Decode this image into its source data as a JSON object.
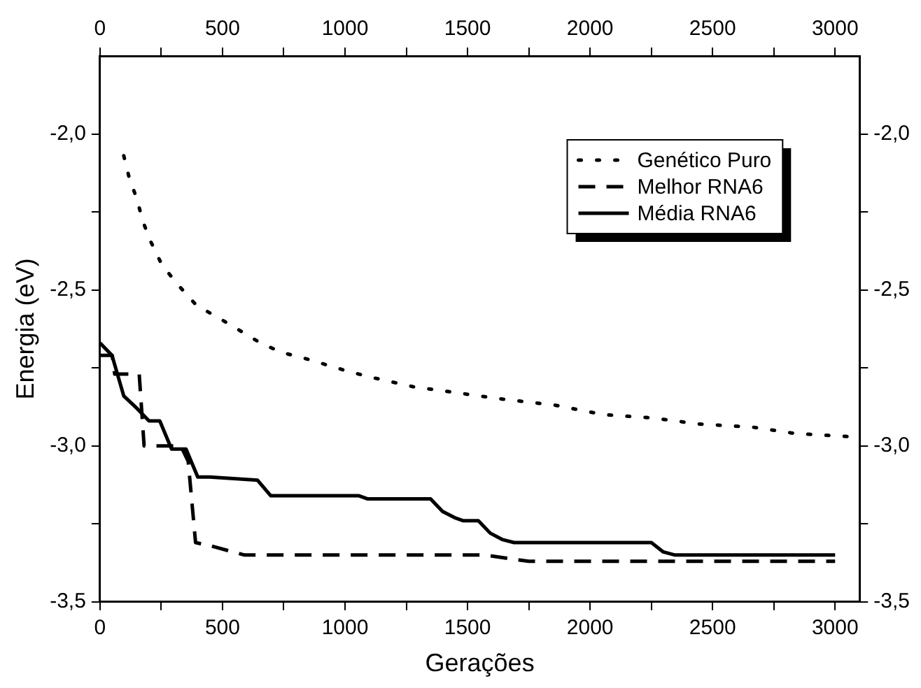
{
  "chart_data": {
    "type": "line",
    "xlabel": "Gerações",
    "ylabel": "Energia (eV)",
    "legend": "top right",
    "grid": false,
    "marker": "none",
    "xlim": [
      0,
      3100
    ],
    "xticks": [
      0,
      {
        "value": 250,
        "label": null
      },
      500,
      {
        "value": 750,
        "label": null
      },
      1000,
      {
        "value": 1250,
        "label": null
      },
      1500,
      {
        "value": 1750,
        "label": null
      },
      2000,
      {
        "value": 2250,
        "label": null
      },
      2500,
      {
        "value": 2750,
        "label": null
      },
      3000
    ],
    "x2lim": [
      0,
      3100
    ],
    "x2ticks": [
      0,
      {
        "value": 250,
        "label": null
      },
      500,
      {
        "value": 750,
        "label": null
      },
      1000,
      {
        "value": 1250,
        "label": null
      },
      1500,
      {
        "value": 1750,
        "label": null
      },
      2000,
      {
        "value": 2250,
        "label": null
      },
      2500,
      {
        "value": 2750,
        "label": null
      },
      3000
    ],
    "ylim": [
      -3.5,
      -1.75
    ],
    "yticks": [
      {
        "value": -3.5,
        "label": "-3,5"
      },
      {
        "value": -3.25,
        "label": null
      },
      {
        "value": -3,
        "label": "-3,0"
      },
      {
        "value": -2.75,
        "label": null
      },
      {
        "value": -2.5,
        "label": "-2,5"
      },
      {
        "value": -2.25,
        "label": null
      },
      {
        "value": -2,
        "label": "-2,0"
      }
    ],
    "y2lim": [
      -3.5,
      -1.75
    ],
    "y2ticks": [
      {
        "value": -3.5,
        "label": "-3,5"
      },
      {
        "value": -3.25,
        "label": null
      },
      {
        "value": -3,
        "label": "-3,0"
      },
      {
        "value": -2.75,
        "label": null
      },
      {
        "value": -2.5,
        "label": "-2,5"
      },
      {
        "value": -2.25,
        "label": null
      },
      {
        "value": -2,
        "label": "-2,0"
      }
    ],
    "series": [
      {
        "name": "Genético Puro",
        "color": "#000000",
        "line_style": "dotted",
        "x": [
          97,
          119,
          151,
          175,
          204,
          253,
          314,
          394,
          485,
          570,
          655,
          740,
          838,
          1008,
          1106,
          1276,
          1458,
          1641,
          1860,
          2055,
          2250,
          2445,
          2664,
          2834,
          3049
        ],
        "values": [
          -2.07,
          -2.14,
          -2.21,
          -2.28,
          -2.34,
          -2.42,
          -2.48,
          -2.55,
          -2.59,
          -2.63,
          -2.67,
          -2.7,
          -2.72,
          -2.76,
          -2.78,
          -2.81,
          -2.83,
          -2.85,
          -2.87,
          -2.9,
          -2.91,
          -2.93,
          -2.94,
          -2.96,
          -2.97
        ]
      },
      {
        "name": "Melhor RNA6",
        "color": "#000000",
        "line_style": "dashed",
        "x": [
          0,
          50,
          60,
          160,
          180,
          210,
          330,
          360,
          390,
          450,
          590,
          1570,
          1750,
          3000
        ],
        "values": [
          -2.71,
          -2.71,
          -2.77,
          -2.77,
          -3.0,
          -3.0,
          -3.0,
          -3.05,
          -3.31,
          -3.32,
          -3.35,
          -3.35,
          -3.37,
          -3.37
        ]
      },
      {
        "name": "Média RNA6",
        "color": "#000000",
        "line_style": "solid",
        "x": [
          0,
          49,
          97,
          151,
          200,
          244,
          292,
          351,
          399,
          448,
          643,
          697,
          1057,
          1093,
          1349,
          1398,
          1447,
          1483,
          1544,
          1593,
          1641,
          1690,
          2250,
          2299,
          2347,
          3000
        ],
        "values": [
          -2.67,
          -2.71,
          -2.84,
          -2.88,
          -2.92,
          -2.92,
          -3.01,
          -3.01,
          -3.1,
          -3.1,
          -3.11,
          -3.16,
          -3.16,
          -3.17,
          -3.17,
          -3.21,
          -3.23,
          -3.24,
          -3.24,
          -3.28,
          -3.3,
          -3.31,
          -3.31,
          -3.34,
          -3.35,
          -3.35
        ]
      }
    ]
  }
}
